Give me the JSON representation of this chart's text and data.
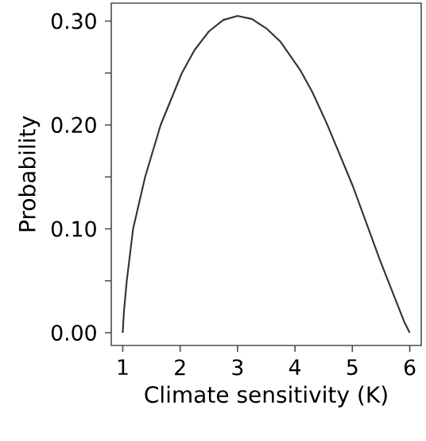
{
  "chart_data": {
    "type": "line",
    "xlabel": "Climate sensitivity (K)",
    "ylabel": "Probability",
    "x": [
      1,
      1.02,
      1.07,
      1.18,
      1.39,
      1.66,
      2.03,
      2.25,
      2.5,
      2.75,
      3,
      3.25,
      3.5,
      3.75,
      4.09,
      4.3,
      4.55,
      5.01,
      5.48,
      5.73,
      5.9,
      6
    ],
    "series": [
      {
        "color": "#333333",
        "values": [
          0,
          0.02,
          0.05,
          0.1,
          0.15,
          0.2,
          0.25,
          0.272,
          0.29,
          0.301,
          0.305,
          0.302,
          0.293,
          0.28,
          0.253,
          0.232,
          0.202,
          0.141,
          0.07,
          0.035,
          0.011,
          0
        ]
      }
    ],
    "xlim": [
      0.8,
      6.2
    ],
    "ylim": [
      -0.0122,
      0.3172
    ],
    "xticks": [
      1,
      2,
      3,
      4,
      5,
      6
    ],
    "yticks": [
      {
        "value": 0,
        "label": "0.00"
      },
      {
        "value": 0.05,
        "label": null
      },
      {
        "value": 0.1,
        "label": "0.10"
      },
      {
        "value": 0.15,
        "label": null
      },
      {
        "value": 0.2,
        "label": "0.20"
      },
      {
        "value": 0.25,
        "label": null
      },
      {
        "value": 0.3,
        "label": "0.30"
      }
    ]
  }
}
